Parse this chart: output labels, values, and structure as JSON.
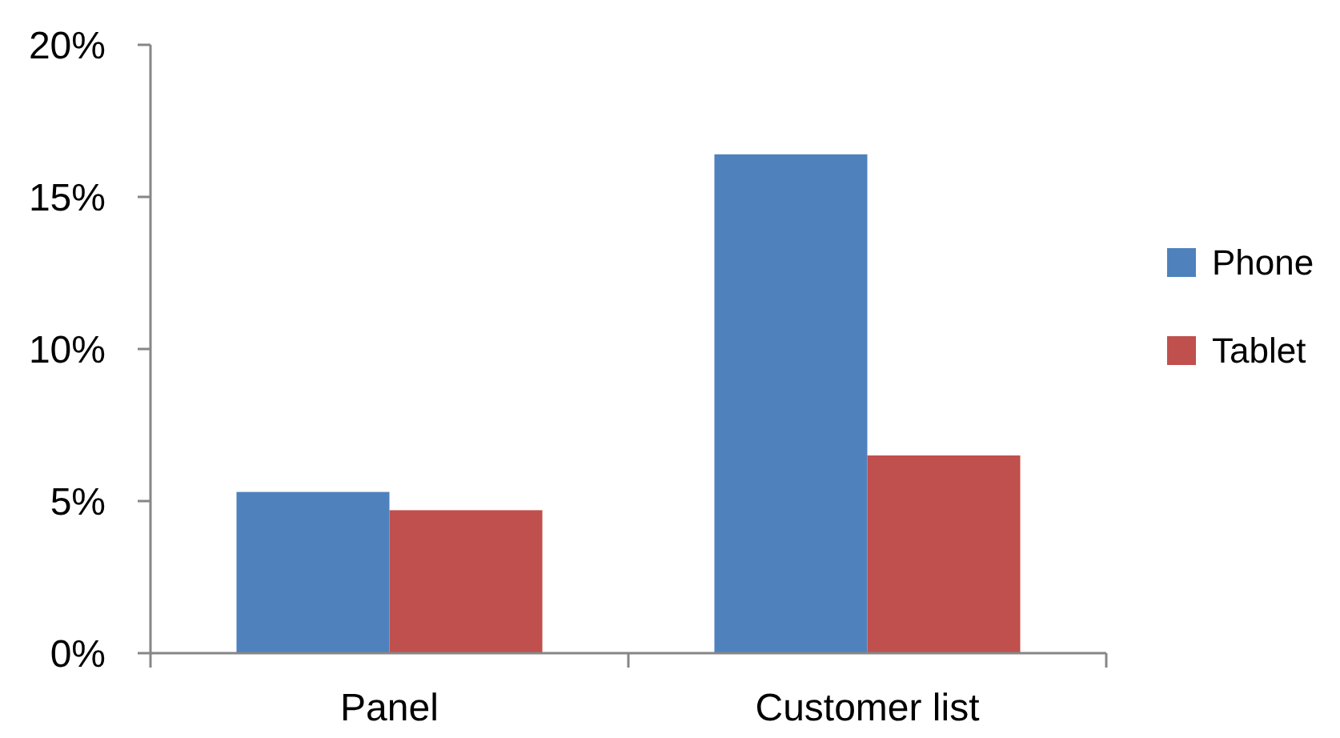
{
  "chart_data": {
    "type": "bar",
    "categories": [
      "Panel",
      "Customer list"
    ],
    "series": [
      {
        "name": "Phone",
        "color": "#4f81bd",
        "values": [
          5.3,
          16.4
        ]
      },
      {
        "name": "Tablet",
        "color": "#c0504d",
        "values": [
          4.7,
          6.5
        ]
      }
    ],
    "ylim": [
      0,
      20
    ],
    "yticks": [
      {
        "value": 0,
        "label": "0%"
      },
      {
        "value": 5,
        "label": "5%"
      },
      {
        "value": 10,
        "label": "10%"
      },
      {
        "value": 15,
        "label": "15%"
      },
      {
        "value": 20,
        "label": "20%"
      }
    ],
    "legend": "right"
  }
}
